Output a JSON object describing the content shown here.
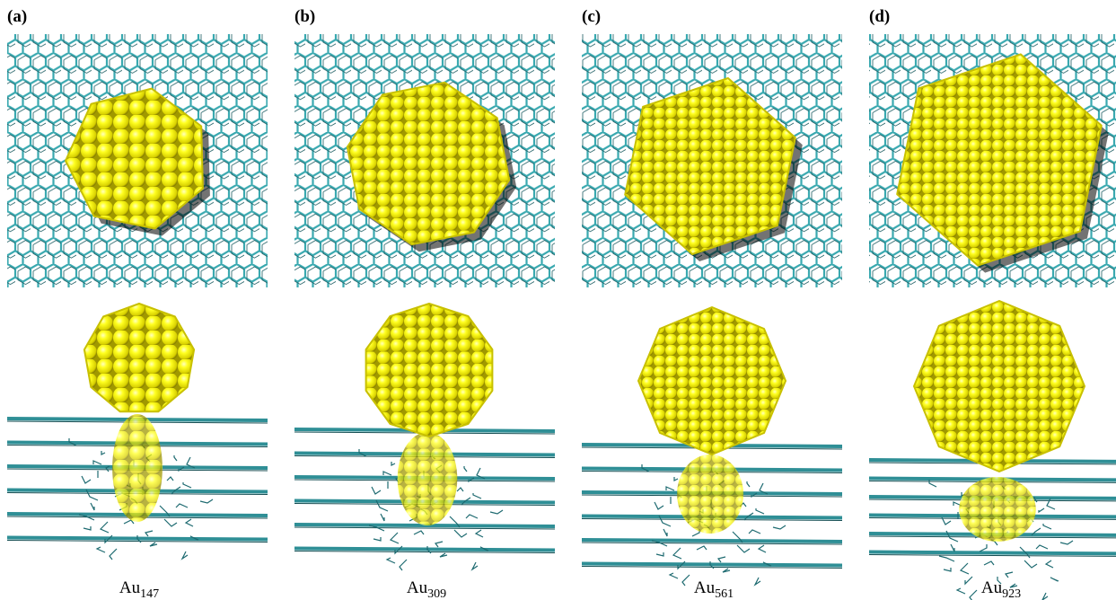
{
  "panels": [
    {
      "label": "(a)",
      "caption": {
        "base": "Au",
        "subscript": "147"
      }
    },
    {
      "label": "(b)",
      "caption": {
        "base": "Au",
        "subscript": "309"
      }
    },
    {
      "label": "(c)",
      "caption": {
        "base": "Au",
        "subscript": "561"
      }
    },
    {
      "label": "(d)",
      "caption": {
        "base": "Au",
        "subscript": "923"
      }
    }
  ]
}
